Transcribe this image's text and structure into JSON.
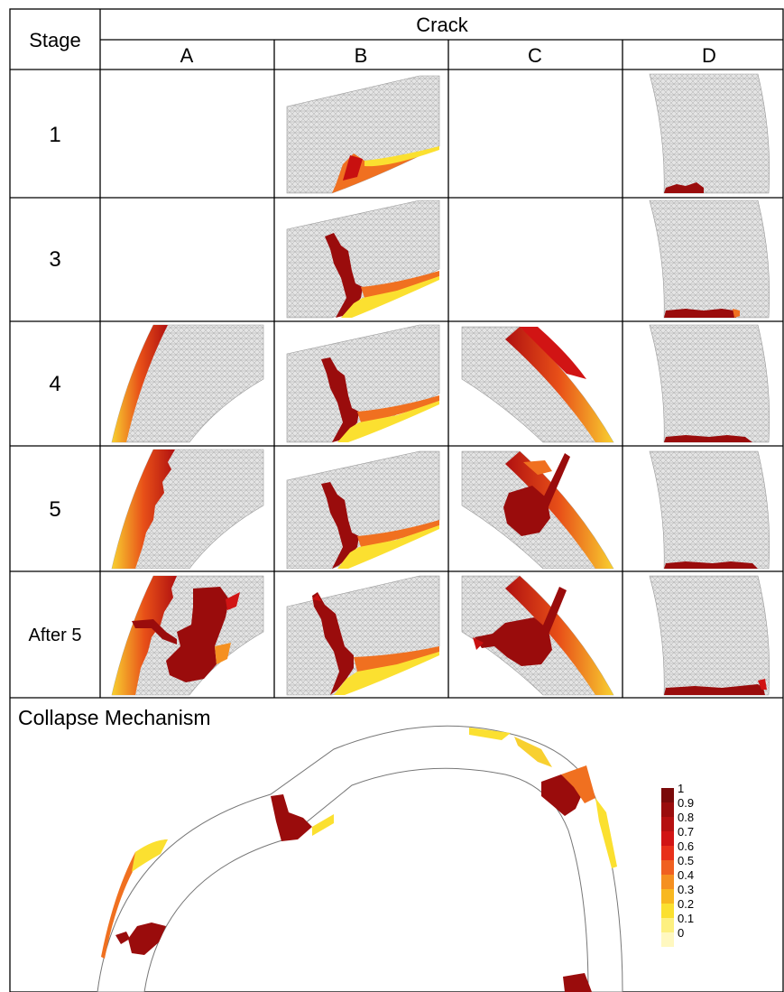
{
  "table": {
    "stage_header": "Stage",
    "crack_header": "Crack",
    "columns": [
      "A",
      "B",
      "C",
      "D"
    ],
    "rows": [
      {
        "label": "1",
        "cells": [
          "",
          "panel",
          "",
          "panel"
        ]
      },
      {
        "label": "3",
        "cells": [
          "",
          "panel",
          "",
          "panel"
        ]
      },
      {
        "label": "4",
        "cells": [
          "panel",
          "panel",
          "panel",
          "panel"
        ]
      },
      {
        "label": "5",
        "cells": [
          "panel",
          "panel",
          "panel",
          "panel"
        ]
      },
      {
        "label": "After 5",
        "cells": [
          "panel",
          "panel",
          "panel",
          "panel"
        ]
      }
    ]
  },
  "collapse": {
    "title": "Collapse Mechanism"
  },
  "legend": {
    "labels": [
      "1",
      "0.9",
      "0.8",
      "0.7",
      "0.6",
      "0.5",
      "0.4",
      "0.3",
      "0.2",
      "0.1",
      "0"
    ],
    "colors": [
      "#7a0a0a",
      "#9a0c0c",
      "#b51010",
      "#d11414",
      "#e8301a",
      "#f06020",
      "#f59020",
      "#f8b820",
      "#fbe030",
      "#fdf080",
      "#fff8c0"
    ]
  },
  "colors": {
    "mesh_fill": "#e4e4e4",
    "damage_dark": "#7a0a0a",
    "damage_red": "#c81010",
    "damage_orange": "#f07020",
    "damage_yellow": "#f8d030"
  }
}
